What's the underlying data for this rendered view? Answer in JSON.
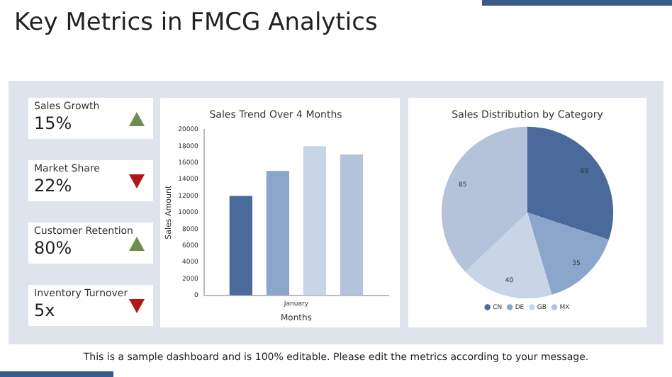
{
  "chart_data": [
    {
      "type": "other",
      "title": "Key Metrics in FMCG Analytics",
      "categories": [
        "Sales Growth",
        "Market Share",
        "Customer Retention",
        "Inventory Turnover"
      ],
      "value_labels": [
        "15%",
        "22%",
        "80%",
        "5x"
      ],
      "annotations": [
        "This is a sample dashboard and is 100% editable. Please edit the metrics according to your message."
      ]
    },
    {
      "type": "bar",
      "title": "Sales Trend Over 4 Months",
      "xlabel": "Months",
      "ylabel": "Sales Amount",
      "categories": [
        "January"
      ],
      "series": [
        {
          "color": "#4a6a9c",
          "values": [
            12000
          ]
        },
        {
          "color": "#8ba6cb",
          "values": [
            15000
          ]
        },
        {
          "color": "#c8d5e7",
          "values": [
            18000
          ]
        },
        {
          "color": "#b4c3da",
          "values": [
            17000
          ]
        }
      ],
      "ylim": [
        0,
        20000
      ],
      "yticks": [
        0,
        2000,
        4000,
        6000,
        8000,
        10000,
        12000,
        14000,
        16000,
        18000,
        20000
      ]
    },
    {
      "type": "pie",
      "title": "Sales Distribution by Category",
      "categories": [
        "CN",
        "DE",
        "GB",
        "MX"
      ],
      "values": [
        69,
        35,
        40,
        85
      ],
      "colors": [
        "#4a6a9c",
        "#8ba6cb",
        "#c8d5e7",
        "#b4c3da"
      ],
      "data_labels": true,
      "legend": "bottom"
    }
  ]
}
